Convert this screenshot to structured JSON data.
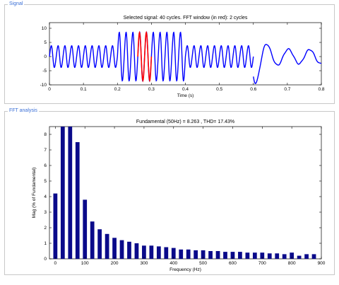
{
  "panels": {
    "signal_label": "Signal",
    "fft_label": "FFT analysis"
  },
  "chart_data": [
    {
      "type": "line",
      "title": "Selected signal: 40 cycles. FFT window (in red): 2 cycles",
      "xlabel": "Time (s)",
      "ylabel": "",
      "xlim": [
        0,
        0.8
      ],
      "ylim": [
        -10,
        12
      ],
      "xticks": [
        "0",
        "0.1",
        "0.2",
        "0.3",
        "0.4",
        "0.5",
        "0.6",
        "0.7",
        "0.8"
      ],
      "yticks": [
        "-10",
        "-5",
        "0",
        "5",
        "10"
      ],
      "grid": false,
      "series": [
        {
          "color": "#0000ff",
          "segments": [
            {
              "t0": 0.0,
              "t1": 0.2,
              "amp": 3.8,
              "offset": 0,
              "freq_hz": 50
            },
            {
              "t0": 0.2,
              "t1": 0.4,
              "amp": 8.5,
              "offset": 0,
              "freq_hz": 50
            },
            {
              "t0": 0.4,
              "t1": 0.6,
              "amp": 3.8,
              "offset": 0,
              "freq_hz": 50
            },
            {
              "t0": 0.6,
              "t1": 0.8,
              "amp": 2.5,
              "offset": 0,
              "freq_hz": 16,
              "spike": 12
            }
          ]
        },
        {
          "color": "#ff0000",
          "segments": [
            {
              "t0": 0.26,
              "t1": 0.3,
              "amp": 8.5,
              "offset": 0,
              "freq_hz": 50
            }
          ]
        }
      ]
    },
    {
      "type": "bar",
      "title": "Fundamental (50Hz) = 8.263 , THD= 17.43%",
      "xlabel": "Frequency (Hz)",
      "ylabel": "Mag (% of Fundamental)",
      "xlim": [
        -20,
        900
      ],
      "ylim": [
        0,
        8.5
      ],
      "xticks": [
        "0",
        "100",
        "200",
        "300",
        "400",
        "500",
        "600",
        "700",
        "800",
        "900"
      ],
      "yticks": [
        "0",
        "1",
        "2",
        "3",
        "4",
        "5",
        "6",
        "7",
        "8"
      ],
      "bar_color": "#0a0a8a",
      "x": [
        0,
        25,
        50,
        75,
        100,
        125,
        150,
        175,
        200,
        225,
        250,
        275,
        300,
        325,
        350,
        375,
        400,
        425,
        450,
        475,
        500,
        525,
        550,
        575,
        600,
        625,
        650,
        675,
        700,
        725,
        750,
        775,
        800,
        825,
        850,
        875
      ],
      "values": [
        4.2,
        8.5,
        8.5,
        7.5,
        3.8,
        2.4,
        1.9,
        1.6,
        1.35,
        1.2,
        1.1,
        1.0,
        0.85,
        0.85,
        0.8,
        0.75,
        0.7,
        0.6,
        0.6,
        0.55,
        0.55,
        0.5,
        0.5,
        0.45,
        0.45,
        0.45,
        0.4,
        0.4,
        0.4,
        0.35,
        0.35,
        0.3,
        0.4,
        0.2,
        0.3,
        0.3
      ]
    }
  ]
}
